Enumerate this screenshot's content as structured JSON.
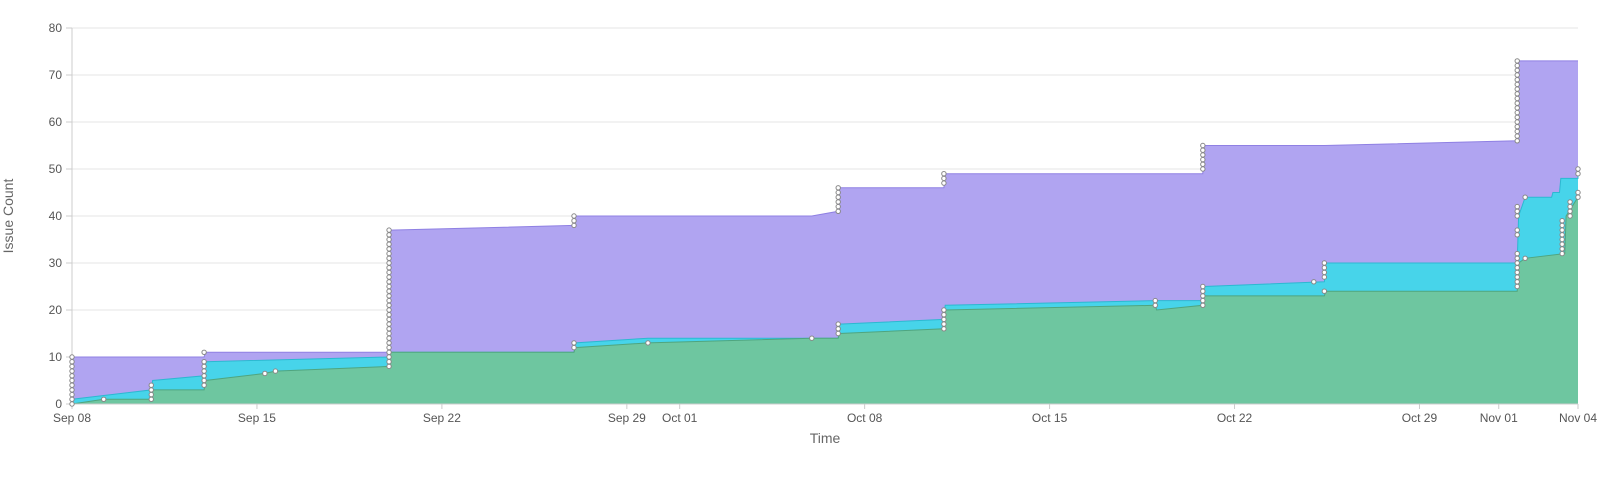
{
  "chart_data": {
    "type": "area",
    "stacked": true,
    "xlabel": "Time",
    "ylabel": "Issue Count",
    "xlim": [
      "2020-09-08",
      "2020-11-04"
    ],
    "ylim": [
      0,
      80
    ],
    "yticks": [
      0,
      10,
      20,
      30,
      40,
      50,
      60,
      70,
      80
    ],
    "xticks": [
      {
        "date": "2020-09-08",
        "label": "Sep 08"
      },
      {
        "date": "2020-09-15",
        "label": "Sep 15"
      },
      {
        "date": "2020-09-22",
        "label": "Sep 22"
      },
      {
        "date": "2020-09-29",
        "label": "Sep 29"
      },
      {
        "date": "2020-10-01",
        "label": "Oct 01"
      },
      {
        "date": "2020-10-08",
        "label": "Oct 08"
      },
      {
        "date": "2020-10-15",
        "label": "Oct 15"
      },
      {
        "date": "2020-10-22",
        "label": "Oct 22"
      },
      {
        "date": "2020-10-29",
        "label": "Oct 29"
      },
      {
        "date": "2020-11-01",
        "label": "Nov 01"
      },
      {
        "date": "2020-11-04",
        "label": "Nov 04"
      }
    ],
    "grid": "horizontal",
    "legend": "none",
    "series": [
      {
        "color": "#6ec6a0",
        "line_color": "#4fa57f",
        "points": [
          [
            "2020-09-08",
            0
          ],
          [
            "2020-09-09.2",
            1
          ],
          [
            "2020-09-11",
            1
          ],
          [
            "2020-09-11.05",
            3
          ],
          [
            "2020-09-13",
            3
          ],
          [
            "2020-09-13.05",
            5
          ],
          [
            "2020-09-15.3",
            6.5
          ],
          [
            "2020-09-15.7",
            7
          ],
          [
            "2020-09-20",
            8
          ],
          [
            "2020-09-20.05",
            11
          ],
          [
            "2020-09-27",
            11
          ],
          [
            "2020-09-27.05",
            12
          ],
          [
            "2020-09-29.8",
            13
          ],
          [
            "2020-10-06",
            14
          ],
          [
            "2020-10-07",
            14
          ],
          [
            "2020-10-07.05",
            15
          ],
          [
            "2020-10-11",
            16
          ],
          [
            "2020-10-11.05",
            20
          ],
          [
            "2020-10-19",
            21
          ],
          [
            "2020-10-19.05",
            20
          ],
          [
            "2020-10-20.8",
            21
          ],
          [
            "2020-10-20.85",
            23
          ],
          [
            "2020-10-25.4",
            23
          ],
          [
            "2020-10-25.45",
            24
          ],
          [
            "2020-11-01.7",
            24
          ],
          [
            "2020-11-01.75",
            30
          ],
          [
            "2020-11-02",
            31
          ],
          [
            "2020-11-03.5",
            32
          ],
          [
            "2020-11-03.55",
            40
          ],
          [
            "2020-11-04",
            44
          ]
        ]
      },
      {
        "color": "#47d4ea",
        "line_color": "#2cb8d1",
        "points": [
          [
            "2020-09-08",
            1
          ],
          [
            "2020-09-11",
            3
          ],
          [
            "2020-09-11.05",
            5
          ],
          [
            "2020-09-13",
            6
          ],
          [
            "2020-09-13.05",
            9
          ],
          [
            "2020-09-20",
            10
          ],
          [
            "2020-09-20.05",
            11
          ],
          [
            "2020-09-27",
            11
          ],
          [
            "2020-09-27.05",
            13
          ],
          [
            "2020-09-29.8",
            14
          ],
          [
            "2020-10-06",
            14
          ],
          [
            "2020-10-07",
            14
          ],
          [
            "2020-10-07.05",
            17
          ],
          [
            "2020-10-11",
            18
          ],
          [
            "2020-10-11.05",
            21
          ],
          [
            "2020-10-19",
            22
          ],
          [
            "2020-10-20.8",
            22
          ],
          [
            "2020-10-20.85",
            25
          ],
          [
            "2020-10-25.4",
            26
          ],
          [
            "2020-10-25.45",
            30
          ],
          [
            "2020-11-01.7",
            30
          ],
          [
            "2020-11-01.75",
            40
          ],
          [
            "2020-11-02",
            44
          ],
          [
            "2020-11-03",
            44
          ],
          [
            "2020-11-03.05",
            45
          ],
          [
            "2020-11-03.3",
            45
          ],
          [
            "2020-11-03.35",
            48
          ],
          [
            "2020-11-04",
            48
          ],
          [
            "2020-11-04.0",
            50
          ]
        ]
      },
      {
        "color": "#b0a4f1",
        "line_color": "#8f80e3",
        "points": [
          [
            "2020-09-08",
            10
          ],
          [
            "2020-09-13",
            10
          ],
          [
            "2020-09-13.05",
            11
          ],
          [
            "2020-09-20",
            11
          ],
          [
            "2020-09-20.05",
            37
          ],
          [
            "2020-09-27",
            38
          ],
          [
            "2020-09-27.05",
            40
          ],
          [
            "2020-10-06",
            40
          ],
          [
            "2020-10-07",
            41
          ],
          [
            "2020-10-07.05",
            46
          ],
          [
            "2020-10-11",
            46
          ],
          [
            "2020-10-11.05",
            49
          ],
          [
            "2020-10-20.8",
            49
          ],
          [
            "2020-10-20.85",
            55
          ],
          [
            "2020-10-25.4",
            55
          ],
          [
            "2020-11-01.7",
            56
          ],
          [
            "2020-11-01.75",
            73
          ],
          [
            "2020-11-04",
            73
          ]
        ]
      }
    ],
    "markers": [
      {
        "date": "2020-09-08",
        "values": [
          0,
          1,
          2,
          3,
          4,
          5,
          6,
          7,
          8,
          9,
          10
        ]
      },
      {
        "date": "2020-09-09.2",
        "values": [
          1
        ]
      },
      {
        "date": "2020-09-11",
        "values": [
          1,
          2,
          3,
          4
        ]
      },
      {
        "date": "2020-09-13",
        "values": [
          4,
          5,
          6,
          7,
          8,
          9,
          11
        ]
      },
      {
        "date": "2020-09-15.3",
        "values": [
          6.5
        ]
      },
      {
        "date": "2020-09-15.7",
        "values": [
          7
        ]
      },
      {
        "date": "2020-09-20",
        "values": [
          8,
          9,
          10,
          11,
          12,
          13,
          14,
          15,
          16,
          17,
          18,
          19,
          20,
          21,
          22,
          23,
          24,
          25,
          26,
          27,
          28,
          29,
          30,
          31,
          32,
          33,
          34,
          35,
          36,
          37
        ]
      },
      {
        "date": "2020-09-27",
        "values": [
          12,
          13,
          38,
          39,
          40
        ]
      },
      {
        "date": "2020-09-29.8",
        "values": [
          13
        ]
      },
      {
        "date": "2020-10-06",
        "values": [
          14
        ]
      },
      {
        "date": "2020-10-07",
        "values": [
          15,
          16,
          17,
          41,
          42,
          43,
          44,
          45,
          46
        ]
      },
      {
        "date": "2020-10-11",
        "values": [
          16,
          17,
          18,
          19,
          20,
          47,
          48,
          49
        ]
      },
      {
        "date": "2020-10-19",
        "values": [
          21,
          22
        ]
      },
      {
        "date": "2020-10-20.8",
        "values": [
          21,
          22,
          23,
          24,
          25,
          50,
          51,
          52,
          53,
          54,
          55
        ]
      },
      {
        "date": "2020-10-25",
        "values": [
          26
        ]
      },
      {
        "date": "2020-10-25.4",
        "values": [
          24,
          27,
          28,
          29,
          30
        ]
      },
      {
        "date": "2020-11-01.7",
        "values": [
          25,
          26,
          27,
          28,
          29,
          30,
          31,
          32,
          36,
          37,
          40,
          41,
          42,
          56,
          57,
          58,
          59,
          60,
          61,
          62,
          63,
          64,
          65,
          66,
          67,
          68,
          69,
          70,
          71,
          72,
          73
        ]
      },
      {
        "date": "2020-11-02",
        "values": [
          31,
          44
        ]
      },
      {
        "date": "2020-11-03.4",
        "values": [
          32,
          33,
          34,
          35,
          36,
          37,
          38,
          39
        ]
      },
      {
        "date": "2020-11-03.7",
        "values": [
          40,
          41,
          42,
          43
        ]
      },
      {
        "date": "2020-11-04",
        "values": [
          44,
          45,
          49,
          50
        ]
      }
    ]
  }
}
